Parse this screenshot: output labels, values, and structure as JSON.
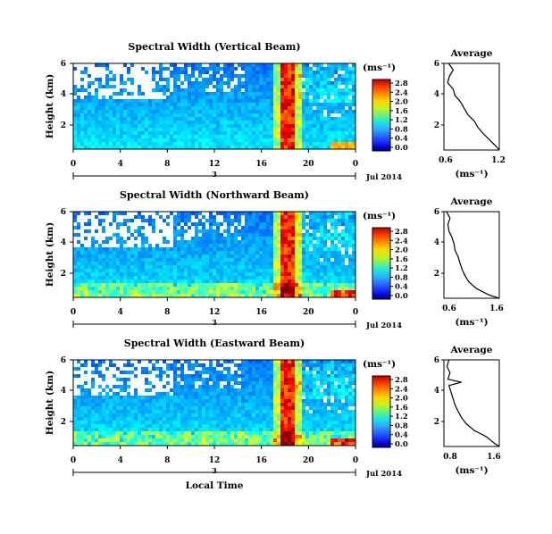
{
  "figure": {
    "xlabel": "Local Time",
    "date_label": "Jul 2014",
    "units": "(ms⁻¹)",
    "day_marker": "3"
  },
  "chart_data": [
    {
      "type": "heatmap",
      "title": "Spectral Width (Vertical Beam)",
      "ylabel": "Height (km)",
      "xlim": [
        0,
        24
      ],
      "x_ticks": [
        "0",
        "4",
        "8",
        "12",
        "16",
        "20",
        "0"
      ],
      "ylim": [
        0.6,
        6.0
      ],
      "y_ticks": [
        "6",
        "4",
        "2"
      ],
      "colorbar": {
        "label": "(ms⁻¹)",
        "range": [
          0.0,
          2.8
        ],
        "ticks": [
          "2.8",
          "2.4",
          "2.0",
          "1.6",
          "1.2",
          "0.8",
          "0.4",
          "0.0"
        ]
      },
      "profile": {
        "title": "Average",
        "xlabel": "(ms⁻¹)",
        "xlim": [
          0.6,
          1.2
        ],
        "x_ticks": [
          "0.6",
          "1.2"
        ],
        "y_ticks": [
          "6",
          "4",
          "2"
        ],
        "heights": [
          6.0,
          5.6,
          5.2,
          4.8,
          4.4,
          4.0,
          3.6,
          3.2,
          2.8,
          2.4,
          2.0,
          1.6,
          1.2,
          0.8,
          0.6
        ],
        "values": [
          0.65,
          0.7,
          0.66,
          0.64,
          0.7,
          0.72,
          0.78,
          0.82,
          0.86,
          0.93,
          0.97,
          1.03,
          1.1,
          1.17,
          1.2
        ]
      }
    },
    {
      "type": "heatmap",
      "title": "Spectral Width (Northward Beam)",
      "ylabel": "Height (km)",
      "xlim": [
        0,
        24
      ],
      "x_ticks": [
        "0",
        "4",
        "8",
        "12",
        "16",
        "20",
        "0"
      ],
      "ylim": [
        0.6,
        6.0
      ],
      "y_ticks": [
        "6",
        "4",
        "2"
      ],
      "colorbar": {
        "label": "(ms⁻¹)",
        "range": [
          0.0,
          2.8
        ],
        "ticks": [
          "2.8",
          "2.4",
          "2.0",
          "1.6",
          "1.2",
          "0.8",
          "0.4",
          "0.0"
        ]
      },
      "profile": {
        "title": "Average",
        "xlabel": "(ms⁻¹)",
        "xlim": [
          0.5,
          1.6
        ],
        "x_ticks": [
          "0.6",
          "1.6"
        ],
        "y_ticks": [
          "6",
          "4",
          "2"
        ],
        "heights": [
          6.0,
          5.6,
          5.2,
          4.8,
          4.4,
          4.0,
          3.6,
          3.2,
          2.8,
          2.4,
          2.0,
          1.6,
          1.2,
          0.8,
          0.6
        ],
        "values": [
          0.55,
          0.62,
          0.58,
          0.6,
          0.66,
          0.7,
          0.72,
          0.78,
          0.82,
          0.86,
          0.92,
          1.0,
          1.15,
          1.4,
          1.6
        ]
      }
    },
    {
      "type": "heatmap",
      "title": "Spectral Width (Eastward Beam)",
      "ylabel": "Height (km)",
      "xlim": [
        0,
        24
      ],
      "x_ticks": [
        "0",
        "4",
        "8",
        "12",
        "16",
        "20",
        "0"
      ],
      "ylim": [
        0.6,
        6.0
      ],
      "y_ticks": [
        "6",
        "4",
        "2"
      ],
      "colorbar": {
        "label": "(ms⁻¹)",
        "range": [
          0.0,
          2.8
        ],
        "ticks": [
          "2.8",
          "2.4",
          "2.0",
          "1.6",
          "1.2",
          "0.8",
          "0.4",
          "0.0"
        ]
      },
      "profile": {
        "title": "Average",
        "xlabel": "(ms⁻¹)",
        "xlim": [
          0.6,
          1.7
        ],
        "x_ticks": [
          "0.8",
          "1.6"
        ],
        "y_ticks": [
          "6",
          "4",
          "2"
        ],
        "heights": [
          6.0,
          5.6,
          5.2,
          4.8,
          4.6,
          4.4,
          4.0,
          3.6,
          3.2,
          2.8,
          2.4,
          2.0,
          1.6,
          1.2,
          0.8,
          0.6
        ],
        "values": [
          0.7,
          0.66,
          0.72,
          0.68,
          0.95,
          0.7,
          0.74,
          0.78,
          0.82,
          0.88,
          0.95,
          1.05,
          1.2,
          1.45,
          1.6,
          1.7
        ]
      }
    }
  ]
}
